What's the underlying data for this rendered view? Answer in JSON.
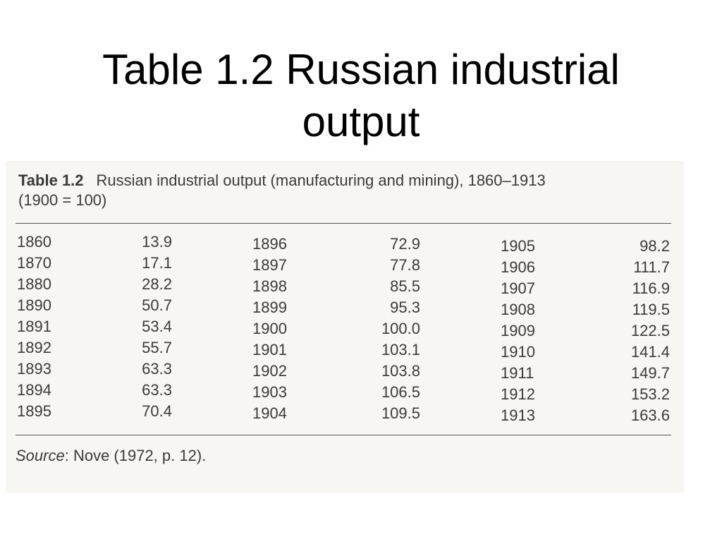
{
  "slide": {
    "title_line1": "Table 1.2 Russian industrial",
    "title_line2": "output"
  },
  "table": {
    "caption_label": "Table 1.2",
    "caption_text": "Russian industrial output (manufacturing and mining), 1860–1913",
    "caption_text2": "(1900 = 100)",
    "rows": [
      [
        {
          "year": "1860",
          "value": "13.9"
        },
        {
          "year": "1896",
          "value": "72.9"
        },
        {
          "year": "1905",
          "value": "98.2"
        }
      ],
      [
        {
          "year": "1870",
          "value": "17.1"
        },
        {
          "year": "1897",
          "value": "77.8"
        },
        {
          "year": "1906",
          "value": "111.7"
        }
      ],
      [
        {
          "year": "1880",
          "value": "28.2"
        },
        {
          "year": "1898",
          "value": "85.5"
        },
        {
          "year": "1907",
          "value": "116.9"
        }
      ],
      [
        {
          "year": "1890",
          "value": "50.7"
        },
        {
          "year": "1899",
          "value": "95.3"
        },
        {
          "year": "1908",
          "value": "119.5"
        }
      ],
      [
        {
          "year": "1891",
          "value": "53.4"
        },
        {
          "year": "1900",
          "value": "100.0"
        },
        {
          "year": "1909",
          "value": "122.5"
        }
      ],
      [
        {
          "year": "1892",
          "value": "55.7"
        },
        {
          "year": "1901",
          "value": "103.1"
        },
        {
          "year": "1910",
          "value": "141.4"
        }
      ],
      [
        {
          "year": "1893",
          "value": "63.3"
        },
        {
          "year": "1902",
          "value": "103.8"
        },
        {
          "year": "1911",
          "value": "149.7"
        }
      ],
      [
        {
          "year": "1894",
          "value": "63.3"
        },
        {
          "year": "1903",
          "value": "106.5"
        },
        {
          "year": "1912",
          "value": "153.2"
        }
      ],
      [
        {
          "year": "1895",
          "value": "70.4"
        },
        {
          "year": "1904",
          "value": "109.5"
        },
        {
          "year": "1913",
          "value": "163.6"
        }
      ]
    ],
    "source_label": "Source",
    "source_text": ":  Nove (1972, p. 12)."
  }
}
